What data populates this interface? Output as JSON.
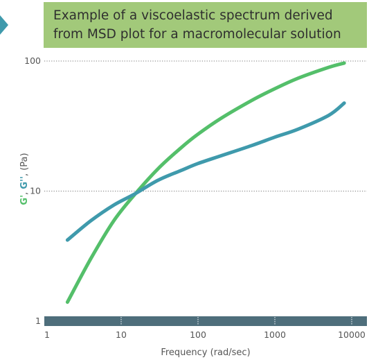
{
  "chart_data": {
    "type": "line",
    "title_lines": [
      "Example of a viscoelastic spectrum derived",
      "from MSD plot for a macromolecular solution"
    ],
    "xlabel": "Frequency (rad/sec)",
    "ylabel": {
      "g_prime": "G'",
      "sep1": ", ",
      "g_double_prime": "G''",
      "sep2": ", ",
      "unit": "(Pa)"
    },
    "x_scale": "log",
    "y_scale": "log",
    "xlim": [
      1,
      10000
    ],
    "ylim": [
      1,
      100
    ],
    "x_ticks": [
      "1",
      "10",
      "100",
      "1000",
      "10000"
    ],
    "y_ticks": [
      "1",
      "10",
      "100"
    ],
    "grid": "horizontal dotted at 10 and 100",
    "series": [
      {
        "color": "#54bf6a",
        "x": [
          2,
          4,
          8,
          15,
          30,
          60,
          100,
          200,
          500,
          1000,
          2000,
          5000,
          8000
        ],
        "y": [
          1.4,
          3.0,
          5.9,
          9.4,
          14.8,
          21.5,
          27.4,
          36.3,
          49.8,
          61.3,
          73.7,
          89.4,
          96.5
        ]
      },
      {
        "color": "#3f9aac",
        "x": [
          2,
          4,
          8,
          15,
          30,
          60,
          100,
          200,
          500,
          1000,
          2000,
          5000,
          8000
        ],
        "y": [
          4.2,
          5.9,
          7.8,
          9.5,
          12.1,
          14.4,
          16.3,
          18.7,
          22.4,
          26.0,
          29.9,
          38.2,
          47.5
        ]
      }
    ],
    "colors": {
      "title_box": "#a2c97a",
      "x_band": "#4e6e7b",
      "grid": "#777777",
      "chevron": "#3f9aac"
    }
  }
}
